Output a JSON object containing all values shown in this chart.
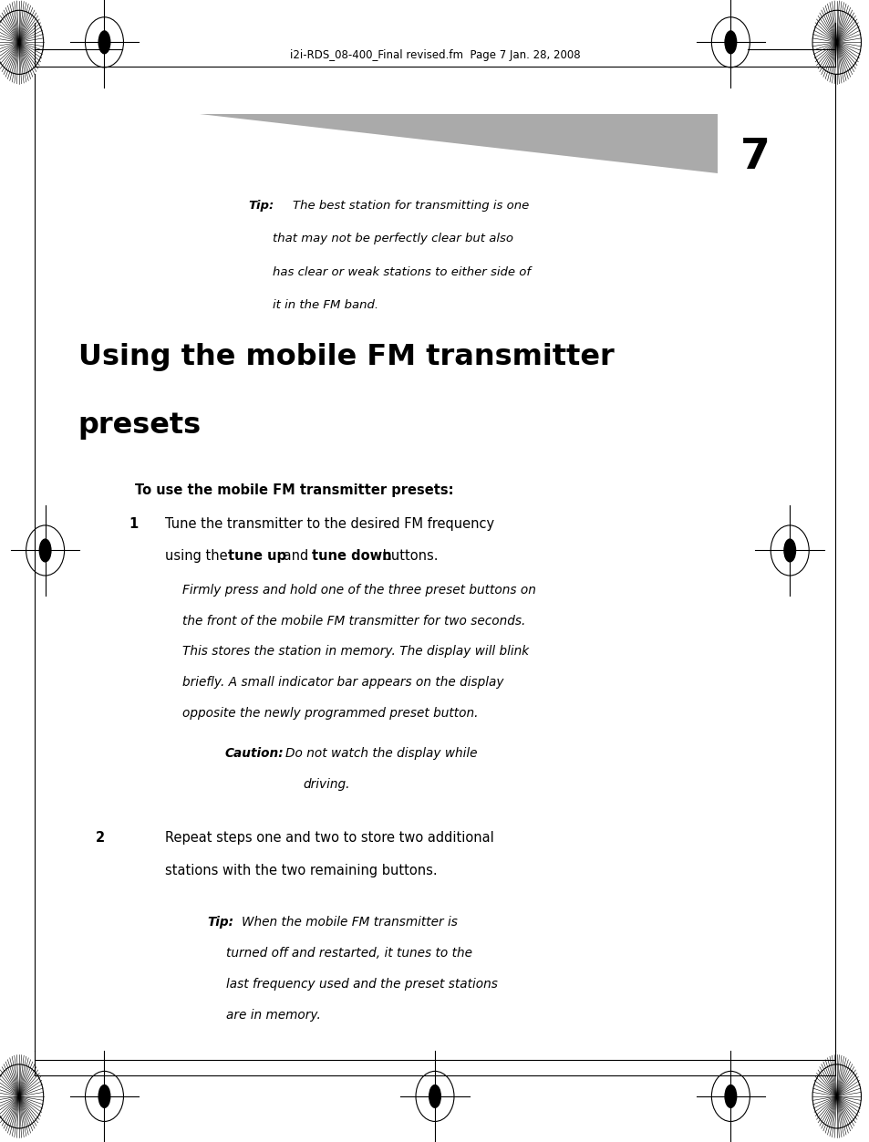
{
  "bg_color": "#ffffff",
  "header_text": "i2i-RDS_08-400_Final revised.fm  Page 7 Jan. 28, 2008",
  "page_number": "7",
  "tip1_bold": "Tip:",
  "tip1_italic": "The best station for transmitting is one\nthat may not be perfectly clear but also\nhas clear or weak stations to either side of\nit in the FM band.",
  "heading": "Using the mobile FM transmitter\npresets",
  "subheading": "To use the mobile FM transmitter presets:",
  "step1_num": "1",
  "step2_num": "2",
  "step2_text": "Repeat steps one and two to store two additional\nstations with the two remaining buttons.",
  "caution_bold": "Caution:",
  "tip2_bold": "Tip:",
  "tip2_lines": [
    "When the mobile FM transmitter is",
    "turned off and restarted, it tunes to the",
    "last frequency used and the preset stations",
    "are in memory."
  ],
  "italic_lines": [
    "Firmly press and hold one of the three preset buttons on",
    "the front of the mobile FM transmitter for two seconds.",
    "This stores the station in memory. The display will blink",
    "briefly. A small indicator bar appears on the display",
    "opposite the newly programmed preset button."
  ]
}
